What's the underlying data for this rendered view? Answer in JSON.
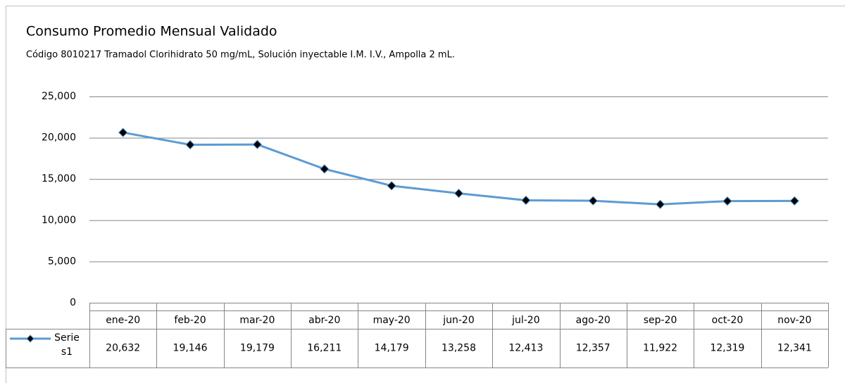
{
  "chart_data": {
    "type": "line",
    "title": "Consumo Promedio Mensual Validado",
    "subtitle": "Código 8010217 Tramadol Clorihidrato 50 mg/mL, Solución inyectable I.M. I.V., Ampolla 2 mL.",
    "categories": [
      "ene-20",
      "feb-20",
      "mar-20",
      "abr-20",
      "may-20",
      "jun-20",
      "jul-20",
      "ago-20",
      "sep-20",
      "oct-20",
      "nov-20"
    ],
    "series": [
      {
        "name": "Serie s1",
        "color": "#5b9bd5",
        "values": [
          20632,
          19146,
          19179,
          16211,
          14179,
          13258,
          12413,
          12357,
          11922,
          12319,
          12341
        ],
        "value_labels": [
          "20,632",
          "19,146",
          "19,179",
          "16,211",
          "14,179",
          "13,258",
          "12,413",
          "12,357",
          "11,922",
          "12,319",
          "12,341"
        ]
      }
    ],
    "ylim": [
      0,
      25000
    ],
    "yticks": [
      0,
      {
        "value": 5000,
        "label": "5,000"
      },
      {
        "value": 10000,
        "label": "10,000"
      },
      {
        "value": 15000,
        "label": "15,000"
      },
      {
        "value": 20000,
        "label": "20,000"
      },
      {
        "value": 25000,
        "label": "25,000"
      }
    ],
    "grid": true
  }
}
